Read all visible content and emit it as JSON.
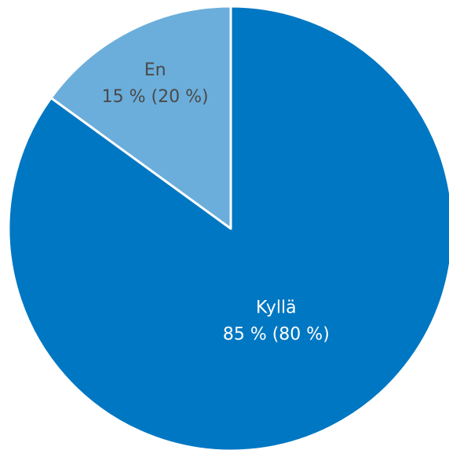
{
  "chart_data": {
    "type": "pie",
    "title": "",
    "slices": [
      {
        "label": "Kyllä",
        "value": 85,
        "value_text": "85 % (80 %)",
        "comparison_value": 80,
        "color": "#0077C2",
        "text_color": "#ffffff"
      },
      {
        "label": "En",
        "value": 15,
        "value_text": "15 % (20 %)",
        "comparison_value": 20,
        "color": "#6BAEDB",
        "text_color": "#4a4a4a"
      }
    ],
    "start": "top",
    "direction": "clockwise",
    "legend": "none"
  }
}
